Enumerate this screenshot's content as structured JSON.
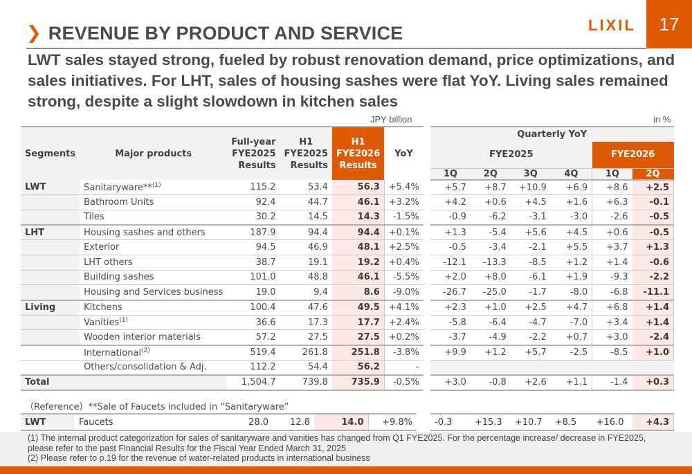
{
  "header": {
    "title": "REVENUE BY PRODUCT AND SERVICE",
    "chevron_icon": "chevron-right-icon",
    "logo": "LIXIL",
    "page_number": "17",
    "accent_color": "#e05a06"
  },
  "headline": "LWT sales stayed strong, fueled by robust renovation demand, price optimizations, and sales initiatives. For LHT, sales of housing sashes were flat YoY. Living sales remained strong, despite a slight slowdown in kitchen sales",
  "units": {
    "left": "JPY billion",
    "right": "in %"
  },
  "left_table": {
    "headers": {
      "segments": "Segments",
      "major_products": "Major products",
      "fy_full_l1": "Full-year",
      "fy_full_l2": "FYE2025",
      "fy_full_l3": "Results",
      "h1_prev_l1": "H1",
      "h1_prev_l2": "FYE2025",
      "h1_prev_l3": "Results",
      "h1_cur_l1": "H1",
      "h1_cur_l2": "FYE2026",
      "h1_cur_l3": "Results",
      "yoy": "YoY"
    },
    "rows": [
      {
        "segment": "LWT",
        "product": "Sanitaryware**",
        "sup": "(1)",
        "full_fy2025": "115.2",
        "h1_fy2025": "53.4",
        "h1_fy2026": "56.3",
        "yoy": "+5.4%"
      },
      {
        "segment": "",
        "product": "Bathroom Units",
        "sup": "",
        "full_fy2025": "92.4",
        "h1_fy2025": "44.7",
        "h1_fy2026": "46.1",
        "yoy": "+3.2%"
      },
      {
        "segment": "",
        "product": "Tiles",
        "sup": "",
        "full_fy2025": "30.2",
        "h1_fy2025": "14.5",
        "h1_fy2026": "14.3",
        "yoy": "-1.5%"
      },
      {
        "segment": "LHT",
        "product": "Housing sashes and others",
        "sup": "",
        "full_fy2025": "187.9",
        "h1_fy2025": "94.4",
        "h1_fy2026": "94.4",
        "yoy": "+0.1%"
      },
      {
        "segment": "",
        "product": "Exterior",
        "sup": "",
        "full_fy2025": "94.5",
        "h1_fy2025": "46.9",
        "h1_fy2026": "48.1",
        "yoy": "+2.5%"
      },
      {
        "segment": "",
        "product": "LHT others",
        "sup": "",
        "full_fy2025": "38.7",
        "h1_fy2025": "19.1",
        "h1_fy2026": "19.2",
        "yoy": "+0.4%"
      },
      {
        "segment": "",
        "product": "Building sashes",
        "sup": "",
        "full_fy2025": "101.0",
        "h1_fy2025": "48.8",
        "h1_fy2026": "46.1",
        "yoy": "-5.5%"
      },
      {
        "segment": "",
        "product": "Housing and Services business",
        "sup": "",
        "full_fy2025": "19.0",
        "h1_fy2025": "9.4",
        "h1_fy2026": "8.6",
        "yoy": "-9.0%"
      },
      {
        "segment": "Living",
        "product": "Kitchens",
        "sup": "",
        "full_fy2025": "100.4",
        "h1_fy2025": "47.6",
        "h1_fy2026": "49.5",
        "yoy": "+4.1%"
      },
      {
        "segment": "",
        "product": "Vanities",
        "sup": "(1)",
        "full_fy2025": "36.6",
        "h1_fy2025": "17.3",
        "h1_fy2026": "17.7",
        "yoy": "+2.4%"
      },
      {
        "segment": "",
        "product": "Wooden interior materials",
        "sup": "",
        "full_fy2025": "57.2",
        "h1_fy2025": "27.5",
        "h1_fy2026": "27.5",
        "yoy": "+0.2%"
      },
      {
        "segment": "",
        "product": "International",
        "sup": "(2)",
        "full_fy2025": "519.4",
        "h1_fy2025": "261.8",
        "h1_fy2026": "251.8",
        "yoy": "-3.8%"
      },
      {
        "segment": "",
        "product": "Others/consolidation & Adj.",
        "sup": "",
        "full_fy2025": "112.2",
        "h1_fy2025": "54.4",
        "h1_fy2026": "56.2",
        "yoy": "-"
      },
      {
        "segment": "Total",
        "product": "",
        "sup": "",
        "full_fy2025": "1,504.7",
        "h1_fy2025": "739.8",
        "h1_fy2026": "735.9",
        "yoy": "-0.5%"
      }
    ]
  },
  "right_table": {
    "title": "Quarterly YoY",
    "fy_prev": "FYE2025",
    "fy_cur": "FYE2026",
    "quarters": [
      "1Q",
      "2Q",
      "3Q",
      "4Q",
      "1Q",
      "2Q"
    ],
    "rows": [
      [
        "+5.7",
        "+8.7",
        "+10.9",
        "+6.9",
        "+8.6",
        "+2.5"
      ],
      [
        "+4.2",
        "+0.6",
        "+4.5",
        "+1.6",
        "+6.3",
        "-0.1"
      ],
      [
        "-0.9",
        "-6.2",
        "-3.1",
        "-3.0",
        "-2.6",
        "-0.5"
      ],
      [
        "+1.3",
        "-5.4",
        "+5.6",
        "+4.5",
        "+0.6",
        "-0.5"
      ],
      [
        "-0.5",
        "-3.4",
        "-2.1",
        "+5.5",
        "+3.7",
        "+1.3"
      ],
      [
        "-12.1",
        "-13.3",
        "-8.5",
        "+1.2",
        "+1.4",
        "-0.6"
      ],
      [
        "+2.0",
        "+8.0",
        "-6.1",
        "+1.9",
        "-9.3",
        "-2.2"
      ],
      [
        "-26.7",
        "-25.0",
        "-1.7",
        "-8.0",
        "-6.8",
        "-11.1"
      ],
      [
        "+2.3",
        "+1.0",
        "+2.5",
        "+4.7",
        "+6.8",
        "+1.4"
      ],
      [
        "-5.8",
        "-6.4",
        "-4.7",
        "-7.0",
        "+3.4",
        "+1.4"
      ],
      [
        "-3.7",
        "-4.9",
        "-2.2",
        "+0.7",
        "+3.0",
        "-2.4"
      ],
      [
        "+9.9",
        "+1.2",
        "+5.7",
        "-2.5",
        "-8.5",
        "+1.0"
      ],
      [
        "",
        "",
        "",
        "",
        "",
        ""
      ],
      [
        "+3.0",
        "-0.8",
        "+2.6",
        "+1.1",
        "-1.4",
        "+0.3"
      ]
    ]
  },
  "reference": {
    "note": "（Reference）**Sale of Faucets included in “Sanitaryware”",
    "segment": "LWT",
    "product": "Faucets",
    "full_fy2025": "28.0",
    "h1_fy2025": "12.8",
    "h1_fy2026": "14.0",
    "yoy": "+9.8%",
    "quarterly": [
      "-0.3",
      "+15.3",
      "+10.7",
      "+8.5",
      "+16.0",
      "+4.3"
    ]
  },
  "footnotes": [
    "(1) The internal product categorization for sales of sanitaryware and vanities has changed from Q1 FYE2025. For the percentage increase/ decrease in FYE2025, please refer to the past Financial Results for the Fiscal Year Ended March 31, 2025",
    "(2) Please refer to p.19 for the revenue of water-related products in international business"
  ]
}
